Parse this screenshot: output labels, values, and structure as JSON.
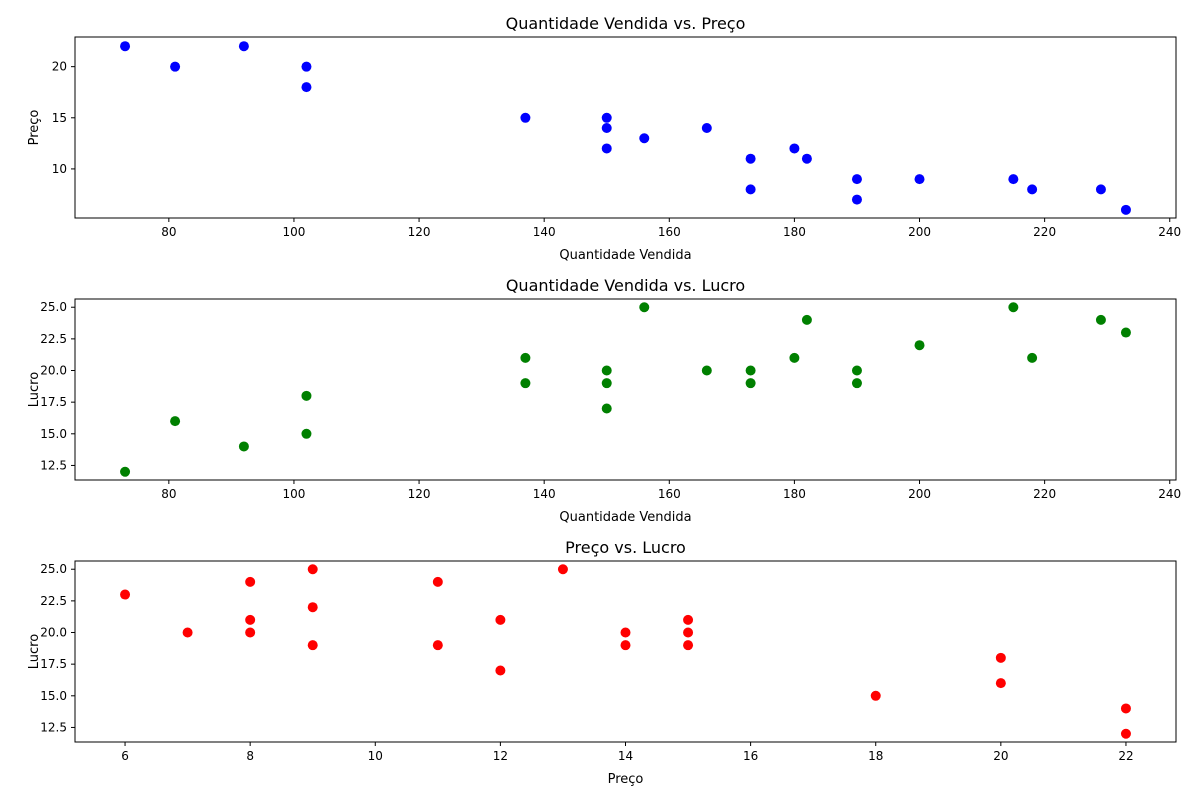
{
  "chart_data": [
    {
      "type": "scatter",
      "title": "Quantidade Vendida vs. Preço",
      "xlabel": "Quantidade Vendida",
      "ylabel": "Preço",
      "xlim": [
        65,
        241
      ],
      "ylim": [
        5.2,
        22.9
      ],
      "xticks": [
        80,
        100,
        120,
        140,
        160,
        180,
        200,
        220,
        240
      ],
      "yticks": [
        10,
        15,
        20
      ],
      "grid": false,
      "color": "#0000ff",
      "points": [
        [
          73,
          22
        ],
        [
          81,
          20
        ],
        [
          92,
          22
        ],
        [
          102,
          20
        ],
        [
          102,
          18
        ],
        [
          137,
          15
        ],
        [
          150,
          15
        ],
        [
          150,
          14
        ],
        [
          150,
          12
        ],
        [
          156,
          13
        ],
        [
          166,
          14
        ],
        [
          173,
          11
        ],
        [
          173,
          8
        ],
        [
          180,
          12
        ],
        [
          182,
          11
        ],
        [
          190,
          9
        ],
        [
          190,
          7
        ],
        [
          200,
          9
        ],
        [
          215,
          9
        ],
        [
          218,
          8
        ],
        [
          229,
          8
        ],
        [
          233,
          6
        ]
      ]
    },
    {
      "type": "scatter",
      "title": "Quantidade Vendida vs. Lucro",
      "xlabel": "Quantidade Vendida",
      "ylabel": "Lucro",
      "xlim": [
        65,
        241
      ],
      "ylim": [
        11.35,
        25.65
      ],
      "xticks": [
        80,
        100,
        120,
        140,
        160,
        180,
        200,
        220,
        240
      ],
      "yticks": [
        12.5,
        15.0,
        17.5,
        20.0,
        22.5,
        25.0
      ],
      "grid": false,
      "color": "#008000",
      "points": [
        [
          73,
          12
        ],
        [
          81,
          16
        ],
        [
          92,
          14
        ],
        [
          102,
          18
        ],
        [
          102,
          15
        ],
        [
          137,
          21
        ],
        [
          137,
          19
        ],
        [
          150,
          20
        ],
        [
          150,
          19
        ],
        [
          150,
          17
        ],
        [
          156,
          25
        ],
        [
          166,
          20
        ],
        [
          173,
          20
        ],
        [
          173,
          19
        ],
        [
          180,
          21
        ],
        [
          182,
          24
        ],
        [
          190,
          20
        ],
        [
          190,
          19
        ],
        [
          200,
          22
        ],
        [
          215,
          25
        ],
        [
          218,
          21
        ],
        [
          229,
          24
        ],
        [
          233,
          23
        ]
      ]
    },
    {
      "type": "scatter",
      "title": "Preço vs. Lucro",
      "xlabel": "Preço",
      "ylabel": "Lucro",
      "xlim": [
        5.2,
        22.8
      ],
      "ylim": [
        11.35,
        25.65
      ],
      "xticks": [
        6,
        8,
        10,
        12,
        14,
        16,
        18,
        20,
        22
      ],
      "yticks": [
        12.5,
        15.0,
        17.5,
        20.0,
        22.5,
        25.0
      ],
      "grid": false,
      "color": "#ff0000",
      "points": [
        [
          6,
          23
        ],
        [
          7,
          20
        ],
        [
          8,
          24
        ],
        [
          8,
          21
        ],
        [
          8,
          20
        ],
        [
          9,
          25
        ],
        [
          9,
          22
        ],
        [
          9,
          19
        ],
        [
          11,
          24
        ],
        [
          11,
          19
        ],
        [
          12,
          21
        ],
        [
          12,
          17
        ],
        [
          13,
          25
        ],
        [
          14,
          20
        ],
        [
          14,
          19
        ],
        [
          15,
          21
        ],
        [
          15,
          20
        ],
        [
          15,
          19
        ],
        [
          18,
          15
        ],
        [
          20,
          18
        ],
        [
          20,
          16
        ],
        [
          22,
          14
        ],
        [
          22,
          12
        ]
      ]
    }
  ]
}
